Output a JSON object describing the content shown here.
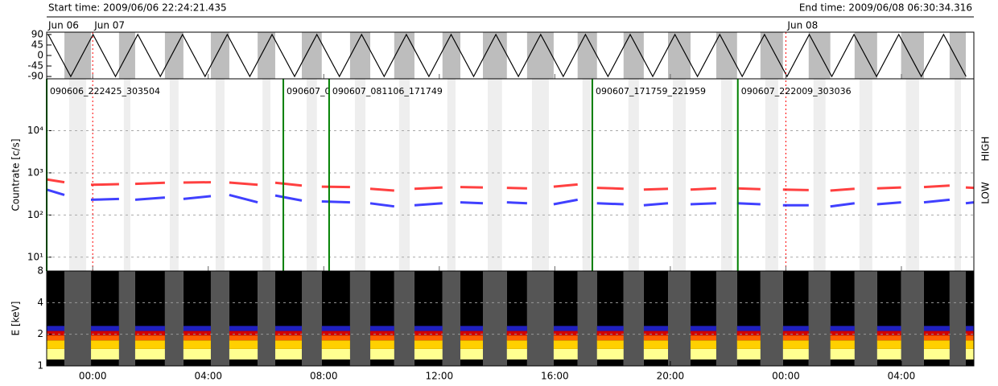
{
  "header": {
    "start": "Start time: 2009/06/06 22:24:21.435",
    "end": "End time: 2009/06/08 06:30:34.316"
  },
  "chart_data": [
    {
      "type": "line",
      "xlim": [
        22.406,
        54.509
      ],
      "ylim": [
        -100,
        100
      ],
      "yticks": [
        90,
        45,
        0,
        -45,
        -90
      ],
      "day_markers": [
        {
          "value": 22.406,
          "label": "Jun 06"
        },
        {
          "value": 24,
          "label": "Jun 07"
        },
        {
          "value": 48,
          "label": "Jun 08"
        }
      ],
      "x": [
        22.46,
        23.24,
        24.01,
        24.79,
        25.56,
        26.34,
        27.11,
        27.89,
        28.66,
        29.44,
        30.21,
        30.99,
        31.76,
        32.54,
        33.31,
        34.09,
        34.86,
        35.64,
        36.41,
        37.19,
        37.96,
        38.74,
        39.51,
        40.29,
        41.06,
        41.84,
        42.61,
        43.39,
        44.16,
        44.94,
        45.71,
        46.49,
        47.26,
        48.04,
        48.81,
        49.59,
        50.36,
        51.14,
        51.91,
        52.69,
        53.46,
        54.24
      ],
      "series": [
        {
          "color": "#000000",
          "values": [
            90,
            -90,
            90,
            -90,
            90,
            -90,
            90,
            -90,
            90,
            -90,
            90,
            -90,
            90,
            -90,
            90,
            -90,
            90,
            -90,
            90,
            -90,
            90,
            -90,
            90,
            -90,
            90,
            -90,
            90,
            -90,
            90,
            -90,
            90,
            -90,
            90,
            -90,
            90,
            -90,
            90,
            -90,
            90,
            -90,
            90,
            -90
          ]
        }
      ]
    },
    {
      "type": "line",
      "yscale": "log",
      "ylabel": "Countrate [c/s]",
      "xlim": [
        22.406,
        54.509
      ],
      "ylim": [
        4.7,
        170000
      ],
      "yticks": [
        {
          "value": 10,
          "label": "10¹"
        },
        {
          "value": 100,
          "label": "10²"
        },
        {
          "value": 1000,
          "label": "10³"
        },
        {
          "value": 10000,
          "label": "10⁴"
        }
      ],
      "x": [
        22.41,
        23.02,
        null,
        23.94,
        24.91,
        null,
        25.47,
        26.5,
        null,
        27.14,
        28.09,
        null,
        28.73,
        29.71,
        null,
        30.32,
        31.24,
        null,
        31.93,
        32.91,
        null,
        33.61,
        34.44,
        null,
        35.14,
        36.11,
        null,
        36.73,
        37.51,
        null,
        38.34,
        39.04,
        null,
        39.96,
        40.79,
        null,
        41.46,
        42.38,
        null,
        43.08,
        43.92,
        null,
        44.7,
        45.59,
        null,
        46.31,
        47.12,
        null,
        47.9,
        48.79,
        null,
        49.54,
        50.38,
        null,
        51.16,
        51.99,
        null,
        52.78,
        53.67,
        null,
        54.23,
        54.51
      ],
      "series": [
        {
          "name": "LOW",
          "color": "#ff0000",
          "values": [
            700,
            600,
            null,
            520,
            540,
            null,
            550,
            580,
            null,
            590,
            600,
            null,
            590,
            520,
            null,
            580,
            500,
            null,
            470,
            460,
            null,
            420,
            380,
            null,
            420,
            450,
            null,
            460,
            450,
            null,
            440,
            430,
            null,
            470,
            530,
            null,
            440,
            420,
            null,
            400,
            420,
            null,
            400,
            430,
            null,
            430,
            410,
            null,
            400,
            390,
            null,
            380,
            420,
            null,
            430,
            450,
            null,
            460,
            500,
            null,
            450,
            440
          ]
        },
        {
          "name": "HIGH",
          "color": "#0000ff",
          "values": [
            400,
            300,
            null,
            230,
            240,
            null,
            230,
            260,
            null,
            240,
            280,
            null,
            300,
            200,
            null,
            290,
            220,
            null,
            210,
            200,
            null,
            190,
            160,
            null,
            170,
            190,
            null,
            200,
            190,
            null,
            200,
            190,
            null,
            180,
            230,
            null,
            190,
            180,
            null,
            170,
            190,
            null,
            180,
            190,
            null,
            190,
            180,
            null,
            170,
            170,
            null,
            160,
            190,
            null,
            180,
            200,
            null,
            200,
            230,
            null,
            190,
            200
          ]
        }
      ],
      "observations": [
        {
          "x": 22.407,
          "label": "090606_222425_303504"
        },
        {
          "x": 30.6,
          "label": "090607_0"
        },
        {
          "x": 32.185,
          "label": "090607_081106_171749"
        },
        {
          "x": 41.3,
          "label": "090607_171759_221959"
        },
        {
          "x": 46.336,
          "label": "090607_222009_303036"
        }
      ]
    },
    {
      "type": "spectrogram",
      "yscale": "log",
      "ylabel": "E [keV]",
      "xlim": [
        22.406,
        54.509
      ],
      "ylim": [
        1,
        8
      ],
      "yticks": [
        1,
        2,
        4,
        8
      ],
      "xticks": [
        {
          "value": 24,
          "label": "00:00"
        },
        {
          "value": 28,
          "label": "04:00"
        },
        {
          "value": 32,
          "label": "08:00"
        },
        {
          "value": 36,
          "label": "12:00"
        },
        {
          "value": 40,
          "label": "16:00"
        },
        {
          "value": 44,
          "label": "20:00"
        },
        {
          "value": 48,
          "label": "00:00"
        },
        {
          "value": 52,
          "label": "04:00"
        }
      ],
      "bands": [
        {
          "from": 1.15,
          "to": 1.45,
          "color": "#ffff90"
        },
        {
          "from": 1.45,
          "to": 1.75,
          "color": "#ffd000"
        },
        {
          "from": 1.75,
          "to": 1.95,
          "color": "#ff6000"
        },
        {
          "from": 1.95,
          "to": 2.15,
          "color": "#d00000"
        },
        {
          "from": 2.15,
          "to": 2.4,
          "color": "#2020c0"
        }
      ]
    }
  ]
}
